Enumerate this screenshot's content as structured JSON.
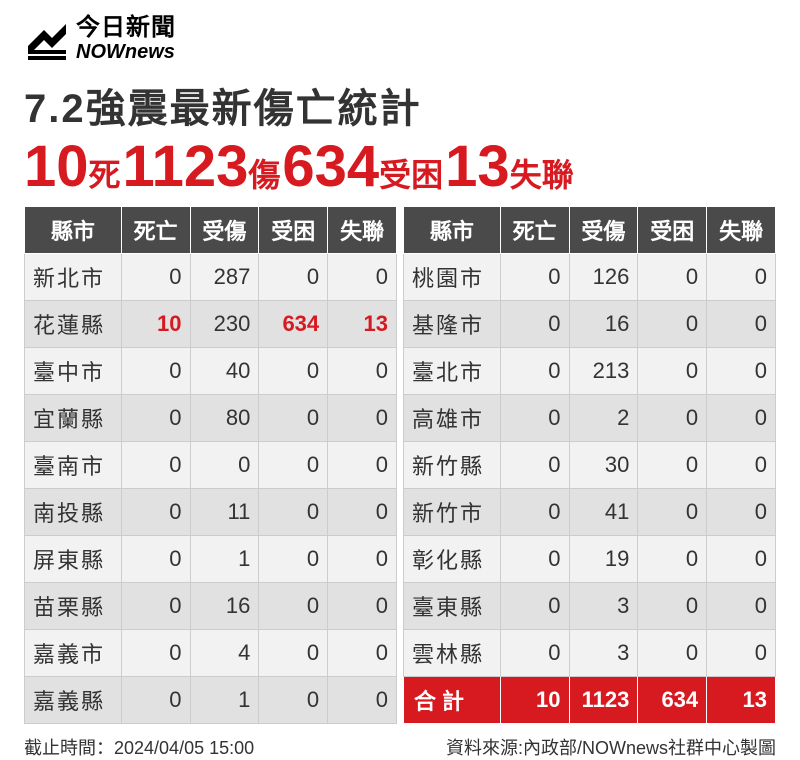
{
  "logo": {
    "cn": "今日新聞",
    "en": "NOWnews"
  },
  "title": "7.2強震最新傷亡統計",
  "headline": {
    "n1": "10",
    "l1": "死",
    "n2": "1123",
    "l2": "傷",
    "n3": "634",
    "l3": "受困",
    "n4": "13",
    "l4": "失聯"
  },
  "headers": {
    "region": "縣市",
    "c1": "死亡",
    "c2": "受傷",
    "c3": "受困",
    "c4": "失聯"
  },
  "left_rows": [
    {
      "r": "新北市",
      "v": [
        "0",
        "287",
        "0",
        "0"
      ],
      "hl": [
        false,
        false,
        false,
        false
      ]
    },
    {
      "r": "花蓮縣",
      "v": [
        "10",
        "230",
        "634",
        "13"
      ],
      "hl": [
        true,
        false,
        true,
        true
      ]
    },
    {
      "r": "臺中市",
      "v": [
        "0",
        "40",
        "0",
        "0"
      ],
      "hl": [
        false,
        false,
        false,
        false
      ]
    },
    {
      "r": "宜蘭縣",
      "v": [
        "0",
        "80",
        "0",
        "0"
      ],
      "hl": [
        false,
        false,
        false,
        false
      ]
    },
    {
      "r": "臺南市",
      "v": [
        "0",
        "0",
        "0",
        "0"
      ],
      "hl": [
        false,
        false,
        false,
        false
      ]
    },
    {
      "r": "南投縣",
      "v": [
        "0",
        "11",
        "0",
        "0"
      ],
      "hl": [
        false,
        false,
        false,
        false
      ]
    },
    {
      "r": "屏東縣",
      "v": [
        "0",
        "1",
        "0",
        "0"
      ],
      "hl": [
        false,
        false,
        false,
        false
      ]
    },
    {
      "r": "苗栗縣",
      "v": [
        "0",
        "16",
        "0",
        "0"
      ],
      "hl": [
        false,
        false,
        false,
        false
      ]
    },
    {
      "r": "嘉義市",
      "v": [
        "0",
        "4",
        "0",
        "0"
      ],
      "hl": [
        false,
        false,
        false,
        false
      ]
    },
    {
      "r": "嘉義縣",
      "v": [
        "0",
        "1",
        "0",
        "0"
      ],
      "hl": [
        false,
        false,
        false,
        false
      ]
    }
  ],
  "right_rows": [
    {
      "r": "桃園市",
      "v": [
        "0",
        "126",
        "0",
        "0"
      ]
    },
    {
      "r": "基隆市",
      "v": [
        "0",
        "16",
        "0",
        "0"
      ]
    },
    {
      "r": "臺北市",
      "v": [
        "0",
        "213",
        "0",
        "0"
      ]
    },
    {
      "r": "高雄市",
      "v": [
        "0",
        "2",
        "0",
        "0"
      ]
    },
    {
      "r": "新竹縣",
      "v": [
        "0",
        "30",
        "0",
        "0"
      ]
    },
    {
      "r": "新竹市",
      "v": [
        "0",
        "41",
        "0",
        "0"
      ]
    },
    {
      "r": "彰化縣",
      "v": [
        "0",
        "19",
        "0",
        "0"
      ]
    },
    {
      "r": "臺東縣",
      "v": [
        "0",
        "3",
        "0",
        "0"
      ]
    },
    {
      "r": "雲林縣",
      "v": [
        "0",
        "3",
        "0",
        "0"
      ]
    }
  ],
  "total": {
    "label": "合計",
    "v": [
      "10",
      "1123",
      "634",
      "13"
    ]
  },
  "footer": {
    "time": "截止時間：2024/04/05 15:00",
    "source": "資料來源:內政部/NOWnews社群中心製圖"
  }
}
